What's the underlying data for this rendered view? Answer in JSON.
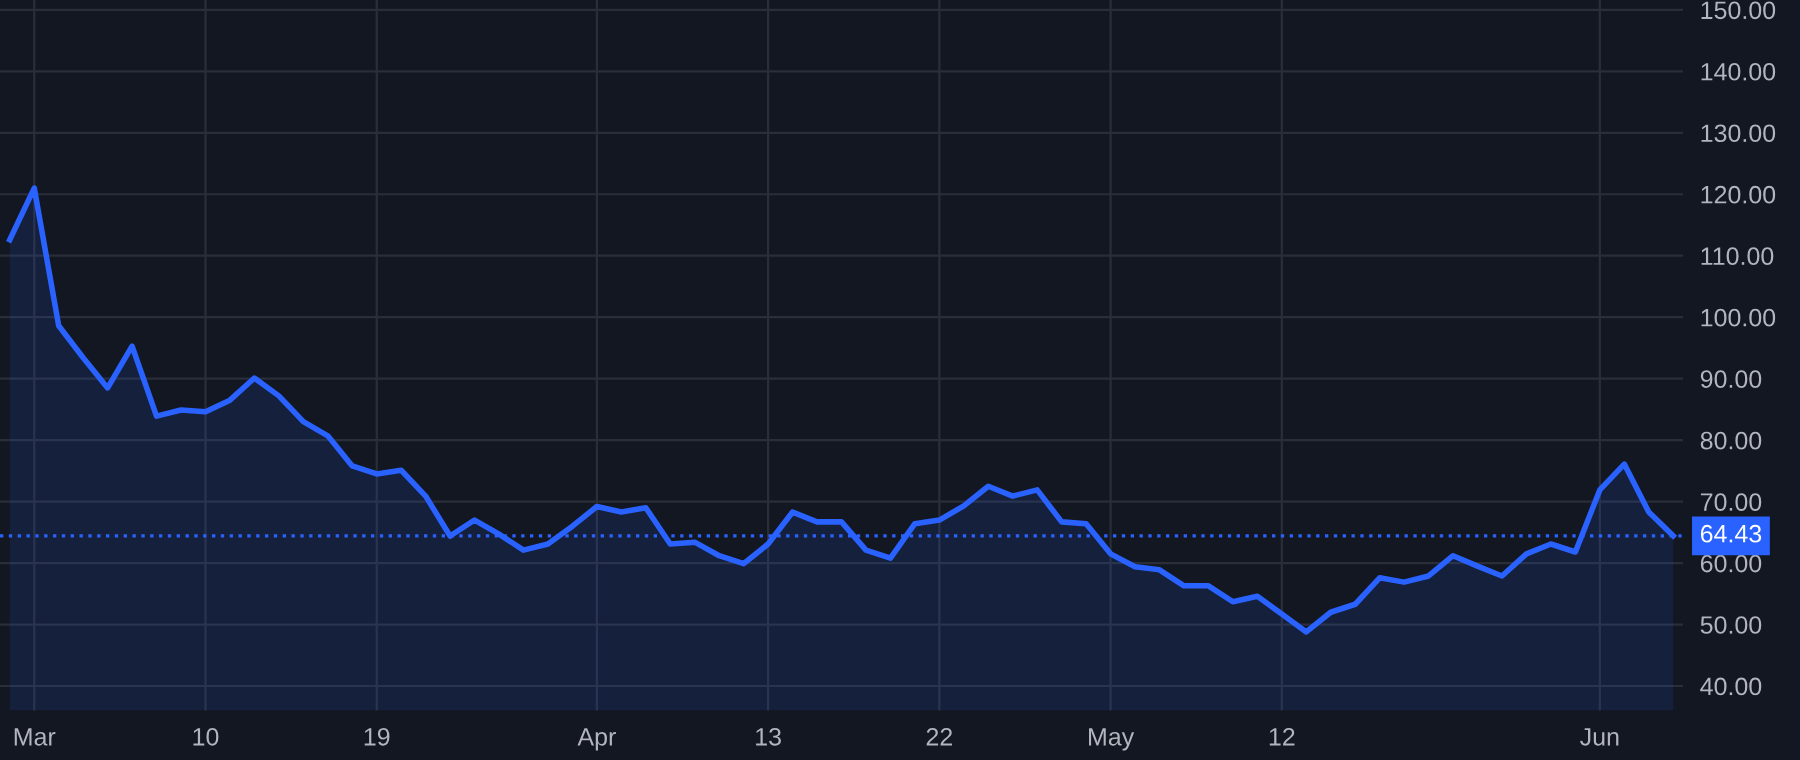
{
  "chart_data": {
    "type": "area",
    "categories": [
      null,
      "Mar",
      null,
      null,
      null,
      null,
      null,
      null,
      "10",
      null,
      null,
      null,
      null,
      null,
      null,
      "19",
      null,
      null,
      null,
      null,
      null,
      null,
      null,
      null,
      "Apr",
      null,
      null,
      null,
      null,
      null,
      null,
      "13",
      null,
      null,
      null,
      null,
      null,
      null,
      "22",
      null,
      null,
      null,
      null,
      null,
      null,
      "May",
      null,
      null,
      null,
      null,
      null,
      null,
      "12",
      null,
      null,
      null,
      null,
      null,
      null,
      null,
      null,
      null,
      null,
      null,
      null,
      "Jun",
      null,
      null,
      null
    ],
    "series": [
      {
        "color": "#2962ff",
        "values": [
          112.6,
          121.0,
          98.6,
          93.4,
          88.5,
          95.3,
          83.9,
          84.9,
          84.6,
          86.5,
          90.1,
          87.2,
          83.0,
          80.7,
          75.8,
          74.5,
          75.1,
          70.9,
          64.4,
          67.0,
          64.7,
          62.1,
          63.1,
          66.0,
          69.2,
          68.3,
          69.0,
          63.1,
          63.4,
          61.2,
          59.9,
          63.1,
          68.3,
          66.7,
          66.7,
          62.1,
          60.8,
          66.4,
          67.0,
          69.3,
          72.5,
          70.9,
          71.9,
          66.7,
          66.4,
          61.5,
          59.4,
          58.9,
          56.3,
          56.3,
          53.7,
          54.6,
          51.7,
          48.8,
          52.0,
          53.3,
          57.6,
          56.9,
          57.9,
          61.2,
          59.5,
          57.9,
          61.5,
          63.1,
          61.8,
          71.9,
          76.1,
          68.3,
          64.43
        ]
      }
    ],
    "ylim": [
      36,
      151.6
    ],
    "yticks": [
      {
        "value": 40,
        "label": "40.00"
      },
      {
        "value": 50,
        "label": "50.00"
      },
      {
        "value": 60,
        "label": "60.00"
      },
      {
        "value": 70,
        "label": "70.00"
      },
      {
        "value": 80,
        "label": "80.00"
      },
      {
        "value": 90,
        "label": "90.00"
      },
      {
        "value": 100,
        "label": "100.00"
      },
      {
        "value": 110,
        "label": "110.00"
      },
      {
        "value": 120,
        "label": "120.00"
      },
      {
        "value": 130,
        "label": "130.00"
      },
      {
        "value": 140,
        "label": "140.00"
      },
      {
        "value": 150,
        "label": "150.00"
      }
    ],
    "ref_lines": [
      {
        "axis": "y",
        "value": 64.43,
        "label": "64.43",
        "color": "#2962ff",
        "line_style": "dotted"
      }
    ],
    "grid": true
  }
}
